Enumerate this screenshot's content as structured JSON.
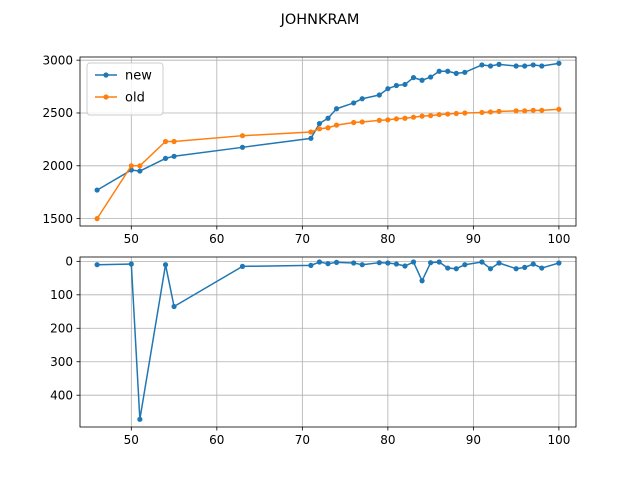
{
  "chart_data": [
    {
      "type": "line",
      "title": "JOHNKRAM",
      "xlabel": "",
      "ylabel": "",
      "xlim": [
        44,
        102
      ],
      "ylim": [
        1430,
        3030
      ],
      "xticks": [
        50,
        60,
        70,
        80,
        90,
        100
      ],
      "yticks": [
        1500,
        2000,
        2500,
        3000
      ],
      "grid": true,
      "legend": "top-left",
      "series": [
        {
          "name": "new",
          "color": "#1f77b4",
          "x": [
            46,
            50,
            51,
            54,
            55,
            63,
            71,
            72,
            73,
            74,
            76,
            77,
            79,
            80,
            81,
            82,
            83,
            84,
            85,
            86,
            87,
            88,
            89,
            91,
            92,
            93,
            95,
            96,
            97,
            98,
            100
          ],
          "y": [
            1770,
            1960,
            1950,
            2070,
            2090,
            2175,
            2260,
            2400,
            2450,
            2540,
            2595,
            2635,
            2670,
            2730,
            2760,
            2770,
            2835,
            2810,
            2840,
            2895,
            2895,
            2875,
            2885,
            2955,
            2945,
            2960,
            2945,
            2945,
            2955,
            2945,
            2970
          ]
        },
        {
          "name": "old",
          "color": "#ff7f0e",
          "x": [
            46,
            50,
            51,
            54,
            55,
            63,
            71,
            72,
            73,
            74,
            76,
            77,
            79,
            80,
            81,
            82,
            83,
            84,
            85,
            86,
            87,
            88,
            89,
            91,
            92,
            93,
            95,
            96,
            97,
            98,
            100
          ],
          "y": [
            1500,
            2000,
            2000,
            2230,
            2230,
            2285,
            2320,
            2350,
            2360,
            2385,
            2410,
            2415,
            2430,
            2435,
            2445,
            2450,
            2460,
            2470,
            2475,
            2485,
            2490,
            2495,
            2500,
            2505,
            2510,
            2515,
            2520,
            2520,
            2525,
            2525,
            2535
          ]
        }
      ]
    },
    {
      "type": "line",
      "title": "",
      "xlabel": "",
      "ylabel": "",
      "xlim": [
        44,
        102
      ],
      "ylim": [
        495,
        -13
      ],
      "y_inverted": true,
      "xticks": [
        50,
        60,
        70,
        80,
        90,
        100
      ],
      "yticks": [
        0,
        100,
        200,
        300,
        400
      ],
      "grid": true,
      "series": [
        {
          "color": "#1f77b4",
          "x": [
            46,
            50,
            51,
            54,
            55,
            63,
            71,
            72,
            73,
            74,
            76,
            77,
            79,
            80,
            81,
            82,
            83,
            84,
            85,
            86,
            87,
            88,
            89,
            91,
            92,
            93,
            95,
            96,
            97,
            98,
            100
          ],
          "y": [
            10,
            8,
            472,
            10,
            135,
            15,
            12,
            2,
            7,
            3,
            5,
            10,
            4,
            5,
            8,
            14,
            2,
            58,
            4,
            2,
            20,
            22,
            10,
            2,
            22,
            5,
            22,
            18,
            8,
            20,
            5
          ]
        }
      ]
    }
  ]
}
